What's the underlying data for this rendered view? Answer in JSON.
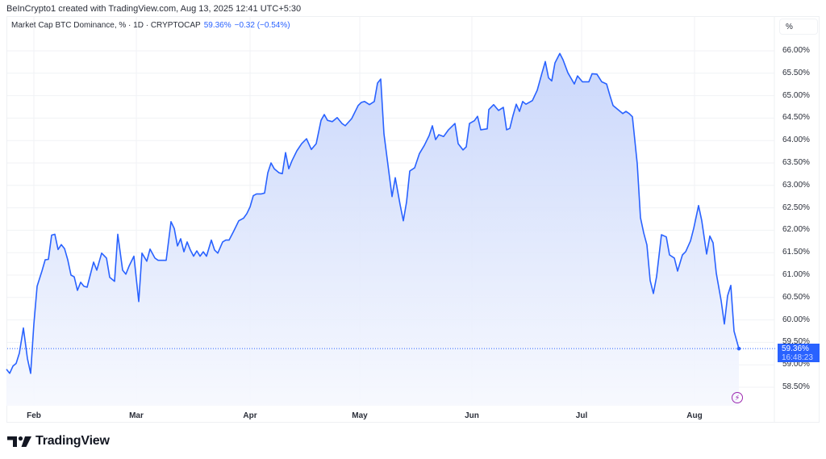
{
  "header": {
    "attribution": "BeInCrypto1 created with TradingView.com, Aug 13, 2025 12:41 UTC+5:30"
  },
  "legend": {
    "symbol": "Market Cap BTC Dominance, % · 1D · CRYPTOCAP",
    "value": "59.36%",
    "change": "−0.32 (−0.54%)"
  },
  "scale": {
    "mode_label": "%"
  },
  "price_tag": {
    "value": "59.36%",
    "countdown": "16:48:23"
  },
  "colors": {
    "line": "#2962ff",
    "fill_top": "#c7d5fb",
    "fill_bottom": "#f6f8fe",
    "grid": "#f0f2f5",
    "last_dot": "#2962ff",
    "flash": "#9c27b0"
  },
  "brand": {
    "logo_mark": "TV",
    "logo_text": "TradingView"
  },
  "flash_icon": "lightning-icon",
  "chart_data": {
    "type": "area",
    "title": "Market Cap BTC Dominance, % · 1D · CRYPTOCAP",
    "xlabel": "",
    "ylabel": "%",
    "ylim": [
      58.3,
      66.2
    ],
    "grid": true,
    "legend_position": "top-left",
    "x_tick_labels": [
      "Feb",
      "Mar",
      "Apr",
      "May",
      "Jun",
      "Jul",
      "Aug"
    ],
    "x_tick_positions": [
      42,
      169,
      310,
      446,
      585,
      721,
      861
    ],
    "y_tick_labels": [
      "66.00%",
      "65.50%",
      "65.00%",
      "64.50%",
      "64.00%",
      "63.50%",
      "63.00%",
      "62.50%",
      "62.00%",
      "61.50%",
      "61.00%",
      "60.50%",
      "60.00%",
      "59.50%",
      "59.00%",
      "58.50%"
    ],
    "y_ticks": [
      66.0,
      65.5,
      65.0,
      64.5,
      64.0,
      63.5,
      63.0,
      62.5,
      62.0,
      61.5,
      61.0,
      60.5,
      60.0,
      59.5,
      59.0,
      58.5
    ],
    "last_value": 59.36,
    "series": [
      {
        "name": "BTC Dominance %",
        "x": [
          8,
          12,
          16,
          20,
          24,
          29,
          34,
          38,
          42,
          46,
          52,
          56,
          60,
          64,
          68,
          72,
          76,
          80,
          84,
          88,
          92,
          96,
          100,
          104,
          108,
          116,
          120,
          126,
          132,
          136,
          142,
          146,
          152,
          156,
          160,
          166,
          172,
          176,
          182,
          186,
          192,
          196,
          206,
          212,
          216,
          220,
          224,
          228,
          232,
          236,
          240,
          244,
          248,
          252,
          256,
          262,
          266,
          270,
          276,
          280,
          284,
          290,
          296,
          302,
          306,
          310,
          314,
          318,
          324,
          328,
          332,
          336,
          340,
          346,
          350,
          354,
          358,
          362,
          368,
          374,
          380,
          386,
          392,
          398,
          402,
          406,
          412,
          418,
          424,
          428,
          436,
          444,
          448,
          452,
          458,
          464,
          468,
          472,
          476,
          486,
          490,
          496,
          500,
          504,
          508,
          514,
          520,
          526,
          532,
          536,
          540,
          544,
          550,
          556,
          564,
          568,
          574,
          578,
          582,
          588,
          592,
          596,
          604,
          606,
          612,
          618,
          624,
          628,
          632,
          636,
          640,
          644,
          648,
          652,
          660,
          666,
          672,
          676,
          680,
          684,
          688,
          694,
          698,
          704,
          712,
          716,
          722,
          730,
          734,
          740,
          746,
          752,
          756,
          760,
          766,
          772,
          776,
          780,
          784,
          790,
          794,
          798,
          802,
          806,
          810,
          814,
          820,
          826,
          830,
          836,
          840,
          846,
          850,
          856,
          860,
          866,
          870,
          876,
          880,
          884,
          888,
          894,
          898,
          902,
          906,
          910,
          916
        ],
        "values": [
          58.9,
          58.81,
          58.97,
          59.03,
          59.26,
          59.82,
          59.14,
          58.81,
          59.91,
          60.75,
          61.09,
          61.34,
          61.35,
          61.89,
          61.91,
          61.57,
          61.68,
          61.59,
          61.34,
          61.0,
          60.96,
          60.66,
          60.84,
          60.75,
          60.73,
          61.29,
          61.11,
          61.49,
          61.38,
          60.95,
          60.86,
          61.91,
          61.11,
          61.02,
          61.2,
          61.42,
          60.41,
          61.49,
          61.31,
          61.58,
          61.38,
          61.33,
          61.33,
          62.19,
          62.04,
          61.65,
          61.81,
          61.52,
          61.74,
          61.56,
          61.42,
          61.54,
          61.42,
          61.52,
          61.42,
          61.78,
          61.56,
          61.49,
          61.74,
          61.78,
          61.78,
          61.99,
          62.21,
          62.27,
          62.37,
          62.52,
          62.77,
          62.81,
          62.81,
          62.83,
          63.28,
          63.5,
          63.37,
          63.28,
          63.26,
          63.73,
          63.37,
          63.55,
          63.77,
          63.93,
          64.04,
          63.8,
          63.93,
          64.45,
          64.58,
          64.45,
          64.42,
          64.51,
          64.38,
          64.33,
          64.49,
          64.78,
          64.85,
          64.87,
          64.8,
          64.87,
          65.28,
          65.37,
          64.15,
          62.75,
          63.17,
          62.57,
          62.21,
          62.63,
          63.32,
          63.39,
          63.71,
          63.89,
          64.11,
          64.33,
          64.02,
          64.13,
          64.09,
          64.24,
          64.38,
          63.93,
          63.79,
          63.86,
          64.38,
          64.44,
          64.54,
          64.24,
          64.26,
          64.69,
          64.8,
          64.67,
          64.74,
          64.24,
          64.27,
          64.56,
          64.81,
          64.65,
          64.87,
          64.81,
          64.89,
          65.12,
          65.51,
          65.76,
          65.4,
          65.33,
          65.73,
          65.94,
          65.8,
          65.51,
          65.26,
          65.44,
          65.31,
          65.31,
          65.49,
          65.48,
          65.31,
          65.26,
          65.01,
          64.78,
          64.69,
          64.6,
          64.65,
          64.6,
          64.53,
          63.48,
          62.28,
          61.94,
          61.67,
          60.88,
          60.59,
          60.97,
          61.9,
          61.85,
          61.45,
          61.38,
          61.09,
          61.45,
          61.52,
          61.76,
          62.04,
          62.55,
          62.21,
          61.47,
          61.87,
          61.72,
          61.04,
          60.43,
          59.91,
          60.54,
          60.77,
          59.75,
          59.36
        ]
      }
    ]
  }
}
